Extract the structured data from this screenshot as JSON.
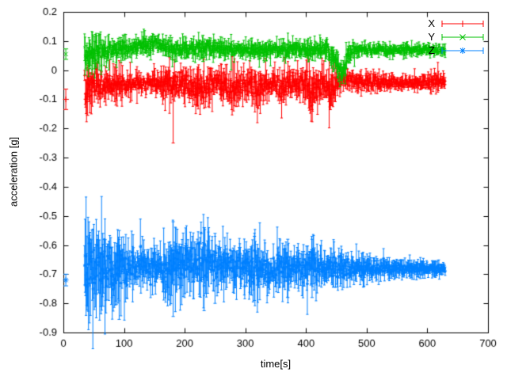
{
  "chart_data": {
    "type": "line",
    "style": "errorbars",
    "xlabel": "time[s]",
    "ylabel": "acceleration [g]",
    "xlim": [
      0,
      700
    ],
    "ylim": [
      -0.9,
      0.2
    ],
    "xticks": [
      0,
      100,
      200,
      300,
      400,
      500,
      600,
      700
    ],
    "yticks": [
      -0.9,
      -0.8,
      -0.7,
      -0.6,
      -0.5,
      -0.4,
      -0.3,
      -0.2,
      -0.1,
      0,
      0.1,
      0.2
    ],
    "grid": false,
    "background": "#ffffff",
    "axis_color": "#000000",
    "seed": 7,
    "legend": {
      "position": "top-right",
      "entries": [
        {
          "label": "X",
          "color": "#ff0000",
          "marker": "plus"
        },
        {
          "label": "Y",
          "color": "#00c000",
          "marker": "cross"
        },
        {
          "label": "Z",
          "color": "#0080ff",
          "marker": "asterisk"
        }
      ]
    },
    "series": [
      {
        "name": "X",
        "color": "#ff0000",
        "marker": "plus",
        "mean_level": -0.05,
        "start_point": {
          "t": 4,
          "v": -0.1,
          "err": 0.035
        },
        "t_range": [
          35,
          630
        ],
        "envelope": [
          [
            35,
            -0.08,
            0.05
          ],
          [
            45,
            -0.06,
            0.05
          ],
          [
            60,
            -0.05,
            0.04
          ],
          [
            80,
            -0.05,
            0.04
          ],
          [
            100,
            -0.045,
            0.03
          ],
          [
            130,
            -0.04,
            0.022
          ],
          [
            160,
            -0.045,
            0.03
          ],
          [
            180,
            -0.05,
            0.04
          ],
          [
            200,
            -0.05,
            0.035
          ],
          [
            220,
            -0.06,
            0.045
          ],
          [
            240,
            -0.055,
            0.04
          ],
          [
            255,
            -0.04,
            0.03
          ],
          [
            270,
            -0.06,
            0.045
          ],
          [
            285,
            -0.065,
            0.045
          ],
          [
            300,
            -0.05,
            0.035
          ],
          [
            315,
            -0.06,
            0.045
          ],
          [
            330,
            -0.05,
            0.04
          ],
          [
            345,
            -0.05,
            0.03
          ],
          [
            360,
            -0.055,
            0.04
          ],
          [
            375,
            -0.05,
            0.035
          ],
          [
            390,
            -0.045,
            0.03
          ],
          [
            400,
            -0.07,
            0.05
          ],
          [
            410,
            -0.08,
            0.05
          ],
          [
            420,
            -0.06,
            0.04
          ],
          [
            430,
            -0.05,
            0.045
          ],
          [
            440,
            -0.07,
            0.055
          ],
          [
            450,
            -0.04,
            0.03
          ],
          [
            465,
            -0.035,
            0.02
          ],
          [
            490,
            -0.04,
            0.02
          ],
          [
            520,
            -0.04,
            0.018
          ],
          [
            560,
            -0.045,
            0.018
          ],
          [
            600,
            -0.04,
            0.018
          ],
          [
            630,
            -0.04,
            0.02
          ]
        ],
        "spikes": [
          [
            181,
            -0.25,
            -0.03
          ],
          [
            40,
            -0.155,
            -0.02
          ],
          [
            220,
            -0.12,
            -0.02
          ],
          [
            285,
            -0.125,
            -0.025
          ],
          [
            410,
            -0.135,
            -0.03
          ],
          [
            440,
            -0.135,
            -0.03
          ]
        ]
      },
      {
        "name": "Y",
        "color": "#00c000",
        "marker": "cross",
        "mean_level": 0.07,
        "start_point": {
          "t": 4,
          "v": 0.055,
          "err": 0.018
        },
        "t_range": [
          35,
          630
        ],
        "envelope": [
          [
            35,
            0.04,
            0.045
          ],
          [
            45,
            0.05,
            0.045
          ],
          [
            60,
            0.055,
            0.035
          ],
          [
            75,
            0.06,
            0.03
          ],
          [
            90,
            0.07,
            0.025
          ],
          [
            110,
            0.075,
            0.02
          ],
          [
            130,
            0.085,
            0.025
          ],
          [
            150,
            0.09,
            0.02
          ],
          [
            165,
            0.08,
            0.02
          ],
          [
            180,
            0.075,
            0.025
          ],
          [
            200,
            0.07,
            0.02
          ],
          [
            215,
            0.075,
            0.02
          ],
          [
            230,
            0.08,
            0.03
          ],
          [
            250,
            0.075,
            0.02
          ],
          [
            270,
            0.07,
            0.02
          ],
          [
            290,
            0.072,
            0.018
          ],
          [
            310,
            0.07,
            0.02
          ],
          [
            330,
            0.068,
            0.02
          ],
          [
            350,
            0.07,
            0.018
          ],
          [
            370,
            0.072,
            0.02
          ],
          [
            390,
            0.07,
            0.018
          ],
          [
            405,
            0.065,
            0.025
          ],
          [
            420,
            0.07,
            0.02
          ],
          [
            435,
            0.072,
            0.02
          ],
          [
            445,
            0.05,
            0.03
          ],
          [
            452,
            0.02,
            0.03
          ],
          [
            458,
            -0.005,
            0.025
          ],
          [
            463,
            0,
            0.03
          ],
          [
            468,
            0.05,
            0.03
          ],
          [
            475,
            0.065,
            0.02
          ],
          [
            490,
            0.07,
            0.015
          ],
          [
            520,
            0.07,
            0.015
          ],
          [
            560,
            0.068,
            0.014
          ],
          [
            600,
            0.07,
            0.014
          ],
          [
            630,
            0.07,
            0.015
          ]
        ],
        "spikes": [
          [
            144,
            0.035,
            0.115
          ],
          [
            230,
            0.03,
            0.12
          ],
          [
            458,
            -0.035,
            0.02
          ]
        ]
      },
      {
        "name": "Z",
        "color": "#0080ff",
        "marker": "asterisk",
        "mean_level": -0.68,
        "start_point": {
          "t": 4,
          "v": -0.72,
          "err": 0.02
        },
        "t_range": [
          35,
          630
        ],
        "envelope": [
          [
            35,
            -0.68,
            0.09
          ],
          [
            45,
            -0.69,
            0.1
          ],
          [
            55,
            -0.68,
            0.1
          ],
          [
            65,
            -0.69,
            0.09
          ],
          [
            75,
            -0.68,
            0.08
          ],
          [
            85,
            -0.69,
            0.09
          ],
          [
            95,
            -0.68,
            0.08
          ],
          [
            105,
            -0.68,
            0.06
          ],
          [
            120,
            -0.675,
            0.05
          ],
          [
            140,
            -0.68,
            0.05
          ],
          [
            160,
            -0.675,
            0.05
          ],
          [
            175,
            -0.68,
            0.07
          ],
          [
            185,
            -0.68,
            0.07
          ],
          [
            200,
            -0.67,
            0.06
          ],
          [
            215,
            -0.665,
            0.07
          ],
          [
            230,
            -0.67,
            0.08
          ],
          [
            245,
            -0.665,
            0.06
          ],
          [
            260,
            -0.67,
            0.06
          ],
          [
            275,
            -0.675,
            0.05
          ],
          [
            290,
            -0.675,
            0.05
          ],
          [
            305,
            -0.68,
            0.06
          ],
          [
            315,
            -0.675,
            0.07
          ],
          [
            330,
            -0.68,
            0.05
          ],
          [
            345,
            -0.68,
            0.045
          ],
          [
            360,
            -0.68,
            0.05
          ],
          [
            370,
            -0.675,
            0.06
          ],
          [
            385,
            -0.68,
            0.045
          ],
          [
            400,
            -0.68,
            0.05
          ],
          [
            410,
            -0.675,
            0.06
          ],
          [
            425,
            -0.68,
            0.045
          ],
          [
            440,
            -0.68,
            0.04
          ],
          [
            460,
            -0.68,
            0.035
          ],
          [
            480,
            -0.682,
            0.03
          ],
          [
            500,
            -0.68,
            0.028
          ],
          [
            520,
            -0.68,
            0.025
          ],
          [
            545,
            -0.68,
            0.022
          ],
          [
            570,
            -0.68,
            0.02
          ],
          [
            600,
            -0.682,
            0.018
          ],
          [
            630,
            -0.68,
            0.018
          ]
        ],
        "spikes": [
          [
            65,
            -0.81,
            -0.56
          ],
          [
            92,
            -0.855,
            -0.55
          ],
          [
            181,
            -0.845,
            -0.52
          ],
          [
            232,
            -0.825,
            -0.54
          ],
          [
            250,
            -0.8,
            -0.56
          ],
          [
            315,
            -0.79,
            -0.57
          ],
          [
            370,
            -0.78,
            -0.58
          ],
          [
            410,
            -0.78,
            -0.58
          ]
        ]
      }
    ]
  }
}
